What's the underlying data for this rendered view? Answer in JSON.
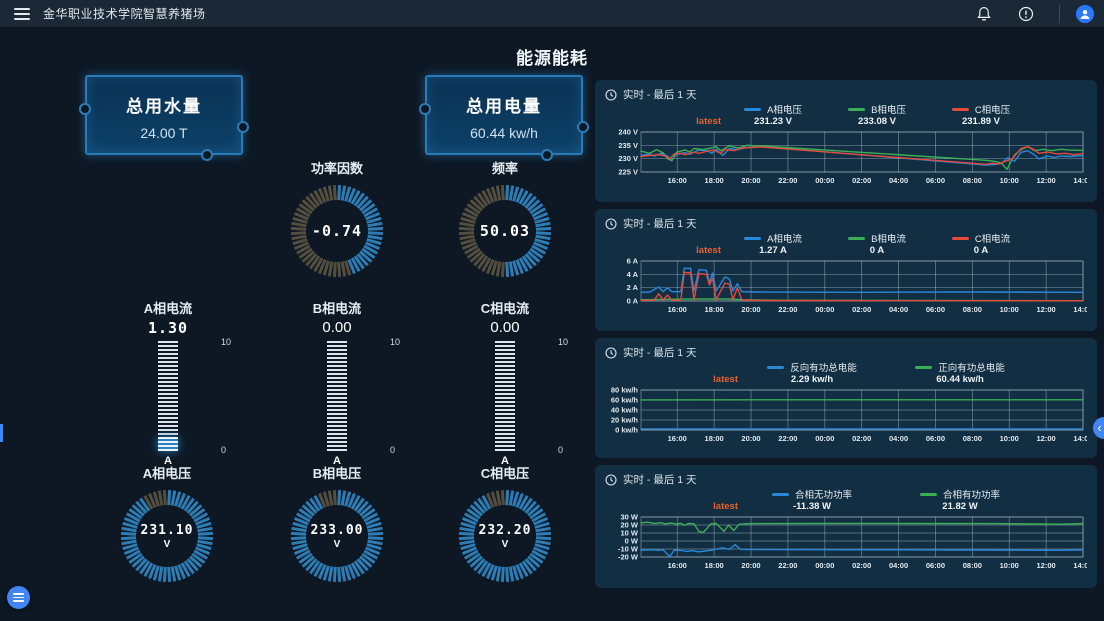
{
  "topbar": {
    "title": "金华职业技术学院智慧养猪场",
    "icons": [
      "menu-icon",
      "bell-icon",
      "info-icon",
      "user-avatar"
    ]
  },
  "page": {
    "title": "能源能耗"
  },
  "colors": {
    "accent_blue": "#4285f4",
    "series_blue": "#2b87d8",
    "series_green": "#3cae54",
    "series_red": "#e24a3b",
    "latest_orange": "#e8622d",
    "gauge_lit": "#2e7cb4",
    "gauge_unlit": "#544e3f",
    "panel_bg": "#112e42"
  },
  "stat_cards": [
    {
      "label": "总用水量",
      "value": "24.00 T"
    },
    {
      "label": "总用电量",
      "value": "60.44 kw/h"
    }
  ],
  "gauges": [
    {
      "label": "功率因数",
      "value": "-0.74",
      "unit": "",
      "percent": 0.45
    },
    {
      "label": "频率",
      "value": "50.03",
      "unit": "",
      "percent": 0.5
    }
  ],
  "meters": [
    {
      "label": "A相电流",
      "value": "1.30",
      "digital": true,
      "fill": 0.13,
      "max": "10",
      "min": "0",
      "unit": "A"
    },
    {
      "label": "B相电流",
      "value": "0.00",
      "digital": false,
      "fill": 0,
      "max": "10",
      "min": "0",
      "unit": "A"
    },
    {
      "label": "C相电流",
      "value": "0.00",
      "digital": false,
      "fill": 0,
      "max": "10",
      "min": "0",
      "unit": "A"
    }
  ],
  "voltage_gauges": [
    {
      "label": "A相电压",
      "value": "231.10",
      "unit": "V",
      "percent": 0.91
    },
    {
      "label": "B相电压",
      "value": "233.00",
      "unit": "V",
      "percent": 0.92
    },
    {
      "label": "C相电压",
      "value": "232.20",
      "unit": "V",
      "percent": 0.92
    }
  ],
  "chart_data": [
    {
      "type": "line",
      "header": "实时 - 最后 1 天",
      "latest_label": "latest",
      "x_ticks": [
        "16:00",
        "18:00",
        "20:00",
        "22:00",
        "00:00",
        "02:00",
        "04:00",
        "06:00",
        "08:00",
        "10:00",
        "12:00",
        "14:00"
      ],
      "ylim": [
        225,
        240
      ],
      "y_ticks": [
        225,
        230,
        235,
        240
      ],
      "y_unit": " V",
      "series": [
        {
          "name": "A相电压",
          "color": "#2b87d8",
          "latest": "231.23 V",
          "points": [
            [
              0,
              231.2
            ],
            [
              0.02,
              231.8
            ],
            [
              0.03,
              230.9
            ],
            [
              0.045,
              232
            ],
            [
              0.06,
              231
            ],
            [
              0.068,
              229.6
            ],
            [
              0.08,
              231.5
            ],
            [
              0.1,
              232.3
            ],
            [
              0.11,
              231.6
            ],
            [
              0.13,
              233.2
            ],
            [
              0.15,
              233
            ],
            [
              0.16,
              232
            ],
            [
              0.17,
              233.5
            ],
            [
              0.185,
              231.2
            ],
            [
              0.2,
              233.8
            ],
            [
              0.22,
              233.4
            ],
            [
              0.24,
              234.2
            ],
            [
              0.27,
              234.6
            ],
            [
              0.78,
              227.6
            ],
            [
              0.8,
              227.8
            ],
            [
              0.815,
              228.2
            ],
            [
              0.83,
              230.4
            ],
            [
              0.845,
              229
            ],
            [
              0.86,
              232.4
            ],
            [
              0.875,
              233
            ],
            [
              0.89,
              231.4
            ],
            [
              0.9,
              229.9
            ],
            [
              0.92,
              231
            ],
            [
              0.935,
              230.4
            ],
            [
              0.95,
              231
            ],
            [
              0.97,
              230.8
            ],
            [
              1,
              231.2
            ]
          ]
        },
        {
          "name": "B相电压",
          "color": "#3cae54",
          "latest": "233.08 V",
          "points": [
            [
              0,
              232.8
            ],
            [
              0.02,
              232
            ],
            [
              0.035,
              233.4
            ],
            [
              0.05,
              232.2
            ],
            [
              0.06,
              230
            ],
            [
              0.07,
              229.2
            ],
            [
              0.08,
              232.4
            ],
            [
              0.1,
              233.3
            ],
            [
              0.11,
              232.5
            ],
            [
              0.12,
              233.8
            ],
            [
              0.14,
              233.4
            ],
            [
              0.16,
              234
            ],
            [
              0.17,
              234.5
            ],
            [
              0.18,
              233
            ],
            [
              0.2,
              234.8
            ],
            [
              0.22,
              234
            ],
            [
              0.24,
              235
            ],
            [
              0.27,
              234.8
            ],
            [
              0.78,
              229.4
            ],
            [
              0.8,
              229
            ],
            [
              0.815,
              228.4
            ],
            [
              0.828,
              226
            ],
            [
              0.845,
              231.4
            ],
            [
              0.86,
              233.4
            ],
            [
              0.875,
              234.5
            ],
            [
              0.89,
              233
            ],
            [
              0.91,
              233.5
            ],
            [
              0.93,
              233
            ],
            [
              0.95,
              233.5
            ],
            [
              0.97,
              233.2
            ],
            [
              1,
              233.1
            ]
          ]
        },
        {
          "name": "C相电压",
          "color": "#e24a3b",
          "latest": "231.89 V",
          "points": [
            [
              0,
              230.8
            ],
            [
              0.02,
              231.2
            ],
            [
              0.04,
              231.5
            ],
            [
              0.055,
              231
            ],
            [
              0.065,
              229.9
            ],
            [
              0.075,
              231.8
            ],
            [
              0.09,
              232
            ],
            [
              0.1,
              231.5
            ],
            [
              0.12,
              232.5
            ],
            [
              0.13,
              232
            ],
            [
              0.15,
              232.8
            ],
            [
              0.165,
              233.2
            ],
            [
              0.18,
              232
            ],
            [
              0.19,
              233.5
            ],
            [
              0.21,
              233
            ],
            [
              0.23,
              234
            ],
            [
              0.25,
              234.2
            ],
            [
              0.27,
              234.4
            ],
            [
              0.78,
              227.9
            ],
            [
              0.795,
              228.3
            ],
            [
              0.81,
              228
            ],
            [
              0.83,
              229.4
            ],
            [
              0.84,
              230
            ],
            [
              0.86,
              233.8
            ],
            [
              0.875,
              234.5
            ],
            [
              0.89,
              233.4
            ],
            [
              0.9,
              232
            ],
            [
              0.92,
              232.5
            ],
            [
              0.94,
              231.8
            ],
            [
              0.96,
              232
            ],
            [
              0.98,
              231.5
            ],
            [
              1,
              231.9
            ]
          ]
        }
      ]
    },
    {
      "type": "line",
      "header": "实时 - 最后 1 天",
      "latest_label": "latest",
      "x_ticks": [
        "16:00",
        "18:00",
        "20:00",
        "22:00",
        "00:00",
        "02:00",
        "04:00",
        "06:00",
        "08:00",
        "10:00",
        "12:00",
        "14:00"
      ],
      "ylim": [
        0,
        6
      ],
      "y_ticks": [
        0,
        2,
        4,
        6
      ],
      "y_unit": " A",
      "series": [
        {
          "name": "A相电流",
          "color": "#2b87d8",
          "latest": "1.27 A",
          "points": [
            [
              0,
              1.3
            ],
            [
              0.02,
              1.35
            ],
            [
              0.04,
              2.1
            ],
            [
              0.05,
              1.4
            ],
            [
              0.06,
              2.0
            ],
            [
              0.07,
              1.4
            ],
            [
              0.09,
              1.4
            ],
            [
              0.098,
              4.9
            ],
            [
              0.112,
              4.9
            ],
            [
              0.12,
              1.5
            ],
            [
              0.131,
              4.7
            ],
            [
              0.148,
              4.6
            ],
            [
              0.155,
              2.8
            ],
            [
              0.162,
              4.2
            ],
            [
              0.17,
              1.5
            ],
            [
              0.19,
              3.6
            ],
            [
              0.2,
              3.3
            ],
            [
              0.208,
              1.5
            ],
            [
              0.218,
              2.6
            ],
            [
              0.228,
              1.4
            ],
            [
              0.26,
              1.35
            ],
            [
              0.5,
              1.3
            ],
            [
              0.75,
              1.35
            ],
            [
              1,
              1.3
            ]
          ]
        },
        {
          "name": "B相电流",
          "color": "#3cae54",
          "latest": "0 A",
          "points": [
            [
              0,
              0.2
            ],
            [
              0.06,
              0.25
            ],
            [
              0.12,
              0.3
            ],
            [
              0.2,
              0.3
            ],
            [
              0.23,
              0.2
            ],
            [
              0.3,
              0.12
            ],
            [
              0.6,
              0.08
            ],
            [
              1,
              0.05
            ]
          ]
        },
        {
          "name": "C相电流",
          "color": "#e24a3b",
          "latest": "0 A",
          "points": [
            [
              0,
              0.1
            ],
            [
              0.03,
              0.12
            ],
            [
              0.04,
              1.1
            ],
            [
              0.05,
              0.15
            ],
            [
              0.06,
              0.9
            ],
            [
              0.07,
              0.12
            ],
            [
              0.09,
              0.1
            ],
            [
              0.098,
              4.3
            ],
            [
              0.112,
              4.2
            ],
            [
              0.12,
              0.2
            ],
            [
              0.131,
              4.1
            ],
            [
              0.148,
              4.0
            ],
            [
              0.155,
              2.4
            ],
            [
              0.162,
              3.4
            ],
            [
              0.17,
              0.2
            ],
            [
              0.19,
              2.7
            ],
            [
              0.2,
              2.5
            ],
            [
              0.208,
              0.2
            ],
            [
              0.218,
              2.0
            ],
            [
              0.228,
              0.15
            ],
            [
              0.26,
              0.08
            ],
            [
              0.6,
              0.05
            ],
            [
              1,
              0.05
            ]
          ]
        }
      ]
    },
    {
      "type": "line",
      "header": "实时 - 最后 1 天",
      "latest_label": "latest",
      "x_ticks": [
        "16:00",
        "18:00",
        "20:00",
        "22:00",
        "00:00",
        "02:00",
        "04:00",
        "06:00",
        "08:00",
        "10:00",
        "12:00",
        "14:00"
      ],
      "ylim": [
        0,
        80
      ],
      "y_ticks": [
        0,
        20,
        40,
        60,
        80
      ],
      "y_unit": " kw/h",
      "series": [
        {
          "name": "反向有功总电能",
          "color": "#2b87d8",
          "latest": "2.29 kw/h",
          "points": [
            [
              0,
              2.3
            ],
            [
              0.5,
              2.3
            ],
            [
              1,
              2.3
            ]
          ]
        },
        {
          "name": "正向有功总电能",
          "color": "#3cae54",
          "latest": "60.44 kw/h",
          "points": [
            [
              0,
              60.3
            ],
            [
              0.5,
              60.35
            ],
            [
              1,
              60.44
            ]
          ]
        }
      ]
    },
    {
      "type": "line",
      "header": "实时 - 最后 1 天",
      "latest_label": "latest",
      "x_ticks": [
        "16:00",
        "18:00",
        "20:00",
        "22:00",
        "00:00",
        "02:00",
        "04:00",
        "06:00",
        "08:00",
        "10:00",
        "12:00",
        "14:00"
      ],
      "ylim": [
        -20,
        30
      ],
      "y_ticks": [
        -20,
        -10,
        0,
        10,
        20,
        30
      ],
      "y_unit": " W",
      "series": [
        {
          "name": "合相无功功率",
          "color": "#2b87d8",
          "latest": "-11.38 W",
          "points": [
            [
              0,
              -11.5
            ],
            [
              0.02,
              -11
            ],
            [
              0.04,
              -11.5
            ],
            [
              0.05,
              -11
            ],
            [
              0.065,
              -19.5
            ],
            [
              0.075,
              -11.5
            ],
            [
              0.09,
              -11.8
            ],
            [
              0.105,
              -13
            ],
            [
              0.115,
              -12
            ],
            [
              0.13,
              -13.5
            ],
            [
              0.145,
              -12.5
            ],
            [
              0.16,
              -11.5
            ],
            [
              0.185,
              -8.5
            ],
            [
              0.2,
              -10.5
            ],
            [
              0.213,
              -4.5
            ],
            [
              0.225,
              -10.5
            ],
            [
              0.3,
              -10.8
            ],
            [
              0.5,
              -11
            ],
            [
              0.75,
              -11.2
            ],
            [
              0.93,
              -11.6
            ],
            [
              1,
              -11.4
            ]
          ]
        },
        {
          "name": "合相有功功率",
          "color": "#3cae54",
          "latest": "21.82 W",
          "points": [
            [
              0,
              22.5
            ],
            [
              0.015,
              23.5
            ],
            [
              0.03,
              22
            ],
            [
              0.045,
              22.8
            ],
            [
              0.055,
              21.5
            ],
            [
              0.07,
              22.5
            ],
            [
              0.08,
              21
            ],
            [
              0.09,
              22.3
            ],
            [
              0.098,
              19.5
            ],
            [
              0.108,
              22
            ],
            [
              0.12,
              21.5
            ],
            [
              0.131,
              12
            ],
            [
              0.14,
              10.5
            ],
            [
              0.15,
              16
            ],
            [
              0.158,
              21.5
            ],
            [
              0.17,
              22
            ],
            [
              0.188,
              12
            ],
            [
              0.198,
              20
            ],
            [
              0.21,
              13
            ],
            [
              0.222,
              21
            ],
            [
              0.25,
              21.8
            ],
            [
              0.4,
              22
            ],
            [
              0.6,
              21.9
            ],
            [
              0.8,
              21.8
            ],
            [
              0.9,
              21.2
            ],
            [
              0.95,
              21
            ],
            [
              1,
              21.8
            ]
          ]
        }
      ]
    }
  ]
}
